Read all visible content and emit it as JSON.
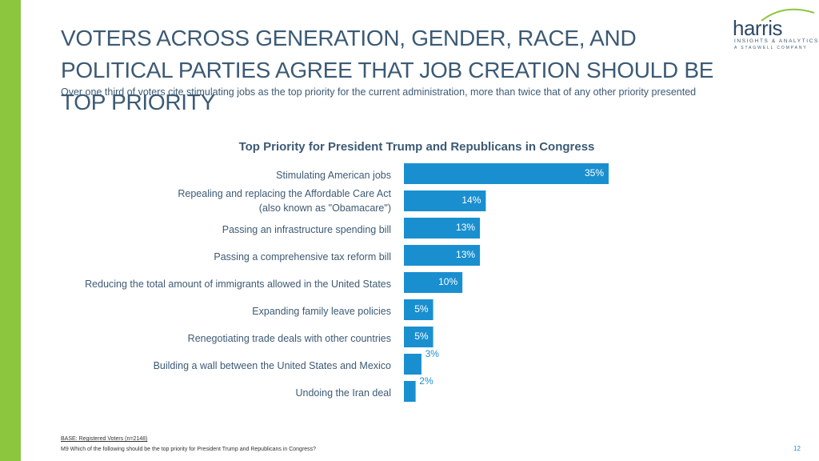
{
  "slide": {
    "title": "VOTERS ACROSS GENERATION, GENDER, RACE, AND POLITICAL PARTIES AGREE THAT JOB CREATION SHOULD BE TOP PRIORITY",
    "subtitle": "Over one third of voters cite stimulating jobs as the top priority for the current administration, more than twice that of any other priority presented",
    "base_note": "BASE: Registered Voters (n=2148)",
    "question": "M9 Which of the following should be the top priority for President Trump and Republicans in Congress?",
    "page_number": "12"
  },
  "logo": {
    "wordmark": "harris",
    "line1": "INSIGHTS & ANALYTICS",
    "line2": "A STAGWELL COMPANY"
  },
  "colors": {
    "bar": "#1a8fd0",
    "text": "#3c5a74",
    "accent": "#8cc63f"
  },
  "chart_data": {
    "type": "bar",
    "orientation": "horizontal",
    "title": "Top Priority for President Trump and Republicans in Congress",
    "categories": [
      [
        "Stimulating American jobs"
      ],
      [
        "Repealing and replacing the Affordable Care Act",
        "(also known as \"Obamacare\")"
      ],
      [
        "Passing an infrastructure spending bill"
      ],
      [
        "Passing a comprehensive tax reform bill"
      ],
      [
        "Reducing the total amount of immigrants allowed in the United States"
      ],
      [
        "Expanding family leave policies"
      ],
      [
        "Renegotiating trade deals with other countries"
      ],
      [
        "Building a wall between the United States and Mexico"
      ],
      [
        "Undoing the Iran deal"
      ]
    ],
    "values": [
      35,
      14,
      13,
      13,
      10,
      5,
      5,
      3,
      2
    ],
    "labels": [
      "35%",
      "14%",
      "13%",
      "13%",
      "10%",
      "5%",
      "5%",
      "3%",
      "2%"
    ],
    "unit": "%",
    "xlim": [
      0,
      35
    ]
  }
}
